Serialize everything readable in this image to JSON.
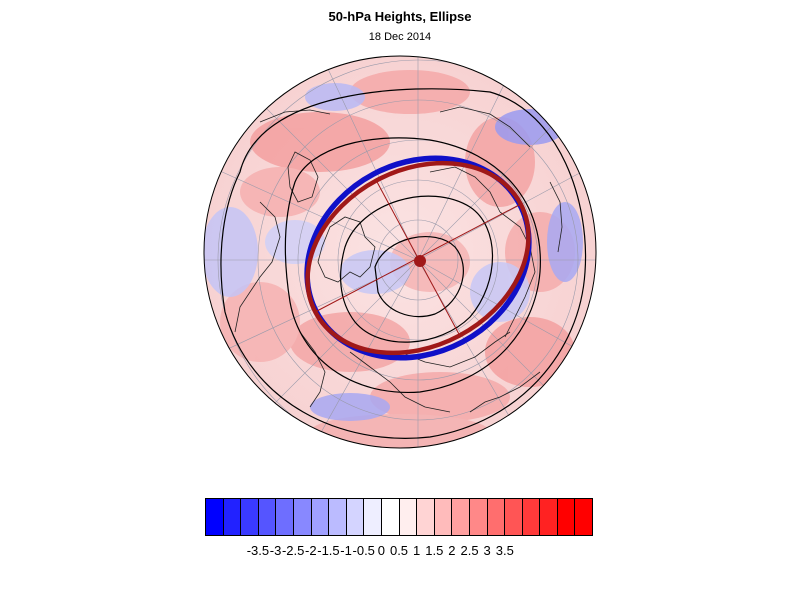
{
  "title": "50-hPa Heights, Ellipse",
  "subtitle": "18 Dec 2014",
  "colors": {
    "ellipse_observed": "#1010c8",
    "ellipse_fit": "#a01818",
    "positive_anomaly": "#f08080",
    "negative_anomaly": "#8080f0",
    "coastlines": "#000000",
    "grid": "#9090a0"
  },
  "colorbar": {
    "colors": [
      "#0000ff",
      "#2222ff",
      "#3a3aff",
      "#5555ff",
      "#6e6eff",
      "#8888ff",
      "#a0a0ff",
      "#bbbbff",
      "#d4d4ff",
      "#eeeeff",
      "#ffffff",
      "#ffeeee",
      "#ffd4d4",
      "#ffbbbb",
      "#ffa0a0",
      "#ff8888",
      "#ff6e6e",
      "#ff5555",
      "#ff3a3a",
      "#ff2222",
      "#ff0000",
      "#ff0000"
    ],
    "labels": [
      "-3.5",
      "-3",
      "-2.5",
      "-2",
      "-1.5",
      "-1",
      "-0.5",
      "0",
      "0.5",
      "1",
      "1.5",
      "2",
      "2.5",
      "3",
      "3.5"
    ]
  }
}
